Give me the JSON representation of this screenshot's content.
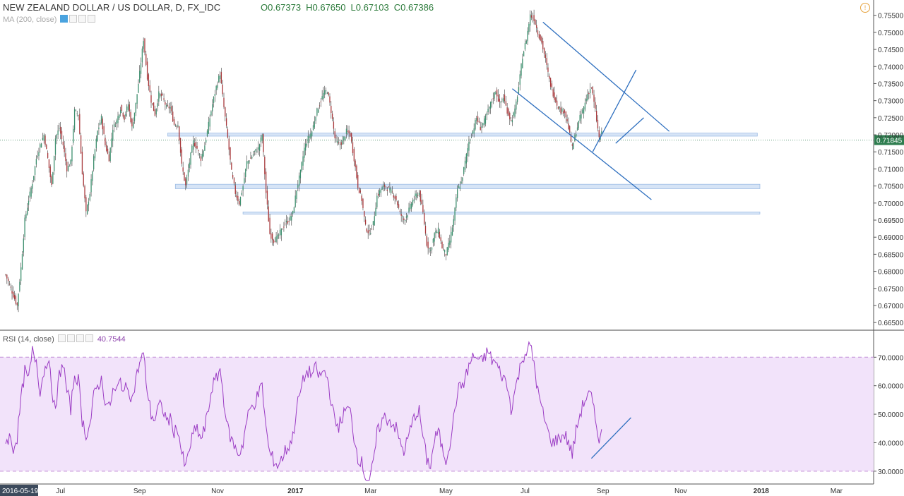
{
  "header": {
    "title": "NEW ZEALAND DOLLAR / US DOLLAR, D, FX_IDC",
    "open": "O0.67373",
    "high": "H0.67650",
    "low": "L0.67103",
    "close": "C0.67386",
    "ma_label": "MA (200, close)",
    "rsi_label": "RSI (14, close)",
    "rsi_value": "40.7544"
  },
  "colors": {
    "up": "#3d8f6e",
    "down": "#a8383b",
    "trendline": "#2e6fbf",
    "zone_fill": "#cfe0f5",
    "rsi_line": "#9b3cc4",
    "rsi_band": "#f2e3fa",
    "price_tag": "#2e7d4f"
  },
  "chart_data": [
    {
      "type": "candlestick",
      "current_price": "0.71845",
      "ylim": [
        0.664,
        0.757
      ],
      "y_ticks": [
        "0.75500",
        "0.75000",
        "0.74500",
        "0.74000",
        "0.73500",
        "0.73000",
        "0.72500",
        "0.72000",
        "0.71500",
        "0.71000",
        "0.70500",
        "0.70000",
        "0.69500",
        "0.69000",
        "0.68500",
        "0.68000",
        "0.67500",
        "0.67000",
        "0.66500"
      ],
      "x_labels": [
        "2016-05-19",
        "Jul",
        "Sep",
        "Nov",
        "2017",
        "Mar",
        "May",
        "Jul",
        "Sep",
        "Nov",
        "2018",
        "Mar"
      ],
      "x_label_days": [
        0,
        43,
        105,
        166,
        227,
        286,
        345,
        407,
        468,
        529,
        592,
        651
      ],
      "last_day": 467,
      "anchors": [
        [
          0,
          0.679
        ],
        [
          3,
          0.676
        ],
        [
          6,
          0.673
        ],
        [
          9,
          0.67
        ],
        [
          12,
          0.681
        ],
        [
          15,
          0.695
        ],
        [
          18,
          0.701
        ],
        [
          21,
          0.706
        ],
        [
          24,
          0.713
        ],
        [
          27,
          0.717
        ],
        [
          30,
          0.72
        ],
        [
          33,
          0.713
        ],
        [
          36,
          0.705
        ],
        [
          39,
          0.719
        ],
        [
          42,
          0.722
        ],
        [
          45,
          0.717
        ],
        [
          48,
          0.71
        ],
        [
          51,
          0.712
        ],
        [
          54,
          0.727
        ],
        [
          57,
          0.726
        ],
        [
          60,
          0.709
        ],
        [
          63,
          0.697
        ],
        [
          66,
          0.703
        ],
        [
          69,
          0.713
        ],
        [
          72,
          0.721
        ],
        [
          75,
          0.725
        ],
        [
          78,
          0.717
        ],
        [
          81,
          0.713
        ],
        [
          84,
          0.722
        ],
        [
          87,
          0.724
        ],
        [
          90,
          0.728
        ],
        [
          93,
          0.725
        ],
        [
          96,
          0.729
        ],
        [
          99,
          0.722
        ],
        [
          102,
          0.729
        ],
        [
          105,
          0.738
        ],
        [
          108,
          0.748
        ],
        [
          111,
          0.737
        ],
        [
          114,
          0.73
        ],
        [
          117,
          0.726
        ],
        [
          120,
          0.732
        ],
        [
          123,
          0.731
        ],
        [
          126,
          0.728
        ],
        [
          129,
          0.728
        ],
        [
          132,
          0.723
        ],
        [
          135,
          0.723
        ],
        [
          138,
          0.711
        ],
        [
          141,
          0.705
        ],
        [
          144,
          0.712
        ],
        [
          147,
          0.718
        ],
        [
          150,
          0.716
        ],
        [
          153,
          0.713
        ],
        [
          156,
          0.717
        ],
        [
          159,
          0.723
        ],
        [
          162,
          0.729
        ],
        [
          165,
          0.734
        ],
        [
          168,
          0.738
        ],
        [
          171,
          0.728
        ],
        [
          174,
          0.719
        ],
        [
          177,
          0.709
        ],
        [
          180,
          0.703
        ],
        [
          183,
          0.7
        ],
        [
          186,
          0.705
        ],
        [
          189,
          0.712
        ],
        [
          192,
          0.713
        ],
        [
          195,
          0.715
        ],
        [
          198,
          0.716
        ],
        [
          201,
          0.72
        ],
        [
          204,
          0.703
        ],
        [
          207,
          0.691
        ],
        [
          210,
          0.689
        ],
        [
          213,
          0.69
        ],
        [
          216,
          0.692
        ],
        [
          219,
          0.694
        ],
        [
          222,
          0.695
        ],
        [
          225,
          0.697
        ],
        [
          228,
          0.704
        ],
        [
          231,
          0.709
        ],
        [
          234,
          0.716
        ],
        [
          237,
          0.719
        ],
        [
          240,
          0.721
        ],
        [
          243,
          0.726
        ],
        [
          246,
          0.729
        ],
        [
          249,
          0.732
        ],
        [
          252,
          0.733
        ],
        [
          255,
          0.727
        ],
        [
          258,
          0.719
        ],
        [
          261,
          0.717
        ],
        [
          264,
          0.718
        ],
        [
          267,
          0.721
        ],
        [
          270,
          0.72
        ],
        [
          273,
          0.713
        ],
        [
          276,
          0.705
        ],
        [
          279,
          0.701
        ],
        [
          282,
          0.693
        ],
        [
          285,
          0.691
        ],
        [
          288,
          0.694
        ],
        [
          291,
          0.702
        ],
        [
          294,
          0.704
        ],
        [
          297,
          0.705
        ],
        [
          300,
          0.704
        ],
        [
          303,
          0.703
        ],
        [
          306,
          0.701
        ],
        [
          309,
          0.697
        ],
        [
          312,
          0.695
        ],
        [
          315,
          0.697
        ],
        [
          318,
          0.7
        ],
        [
          321,
          0.702
        ],
        [
          324,
          0.703
        ],
        [
          327,
          0.697
        ],
        [
          330,
          0.688
        ],
        [
          333,
          0.686
        ],
        [
          336,
          0.691
        ],
        [
          339,
          0.692
        ],
        [
          342,
          0.687
        ],
        [
          345,
          0.685
        ],
        [
          348,
          0.689
        ],
        [
          351,
          0.695
        ],
        [
          354,
          0.704
        ],
        [
          357,
          0.706
        ],
        [
          360,
          0.712
        ],
        [
          363,
          0.718
        ],
        [
          366,
          0.721
        ],
        [
          369,
          0.725
        ],
        [
          372,
          0.722
        ],
        [
          375,
          0.724
        ],
        [
          378,
          0.727
        ],
        [
          381,
          0.73
        ],
        [
          384,
          0.733
        ],
        [
          387,
          0.729
        ],
        [
          390,
          0.731
        ],
        [
          393,
          0.727
        ],
        [
          396,
          0.724
        ],
        [
          399,
          0.727
        ],
        [
          402,
          0.734
        ],
        [
          405,
          0.743
        ],
        [
          408,
          0.748
        ],
        [
          411,
          0.755
        ],
        [
          414,
          0.754
        ],
        [
          417,
          0.75
        ],
        [
          420,
          0.747
        ],
        [
          423,
          0.742
        ],
        [
          426,
          0.736
        ],
        [
          429,
          0.732
        ],
        [
          432,
          0.729
        ],
        [
          435,
          0.727
        ],
        [
          438,
          0.727
        ],
        [
          441,
          0.722
        ],
        [
          444,
          0.716
        ],
        [
          447,
          0.721
        ],
        [
          450,
          0.725
        ],
        [
          453,
          0.728
        ],
        [
          456,
          0.732
        ],
        [
          459,
          0.734
        ],
        [
          462,
          0.727
        ],
        [
          465,
          0.719
        ],
        [
          468,
          0.721
        ],
        [
          471,
          0.718
        ],
        [
          474,
          0.714
        ],
        [
          477,
          0.707
        ],
        [
          480,
          0.706
        ],
        [
          483,
          0.71
        ],
        [
          486,
          0.718
        ]
      ],
      "channel_lines": [
        {
          "d1": 421,
          "p1": 0.753,
          "d2": 520,
          "p2": 0.721
        },
        {
          "d1": 397,
          "p1": 0.7335,
          "d2": 506,
          "p2": 0.701
        },
        {
          "d1": 460,
          "p1": 0.715,
          "d2": 494,
          "p2": 0.739
        },
        {
          "d1": 478,
          "p1": 0.7175,
          "d2": 500,
          "p2": 0.725
        }
      ],
      "zones": [
        {
          "d1": 127,
          "d2": 589,
          "lo": 0.7196,
          "hi": 0.7205
        },
        {
          "d1": 133,
          "d2": 591,
          "lo": 0.7042,
          "hi": 0.7055
        },
        {
          "d1": 186,
          "d2": 591,
          "lo": 0.6968,
          "hi": 0.6974
        }
      ]
    },
    {
      "type": "line",
      "ylim": [
        25.5,
        78
      ],
      "y_ticks": [
        "70.0000",
        "60.0000",
        "50.0000",
        "40.0000",
        "30.0000"
      ],
      "band": [
        30,
        70
      ],
      "rsi": [
        [
          0,
          40
        ],
        [
          3,
          42
        ],
        [
          6,
          38
        ],
        [
          9,
          42
        ],
        [
          12,
          55
        ],
        [
          15,
          65
        ],
        [
          18,
          62
        ],
        [
          21,
          72
        ],
        [
          24,
          69
        ],
        [
          27,
          58
        ],
        [
          30,
          65
        ],
        [
          33,
          70
        ],
        [
          36,
          60
        ],
        [
          39,
          50
        ],
        [
          42,
          64
        ],
        [
          45,
          68
        ],
        [
          48,
          58
        ],
        [
          51,
          52
        ],
        [
          54,
          64
        ],
        [
          57,
          62
        ],
        [
          60,
          48
        ],
        [
          63,
          43
        ],
        [
          66,
          46
        ],
        [
          69,
          56
        ],
        [
          72,
          60
        ],
        [
          75,
          62
        ],
        [
          78,
          55
        ],
        [
          81,
          52
        ],
        [
          84,
          58
        ],
        [
          87,
          58
        ],
        [
          90,
          62
        ],
        [
          93,
          58
        ],
        [
          96,
          60
        ],
        [
          99,
          55
        ],
        [
          102,
          62
        ],
        [
          105,
          68
        ],
        [
          108,
          71
        ],
        [
          111,
          58
        ],
        [
          114,
          50
        ],
        [
          117,
          48
        ],
        [
          120,
          53
        ],
        [
          123,
          52
        ],
        [
          126,
          48
        ],
        [
          129,
          48
        ],
        [
          132,
          44
        ],
        [
          135,
          45
        ],
        [
          138,
          36
        ],
        [
          141,
          31
        ],
        [
          144,
          38
        ],
        [
          147,
          43
        ],
        [
          150,
          45
        ],
        [
          153,
          41
        ],
        [
          156,
          45
        ],
        [
          159,
          52
        ],
        [
          162,
          60
        ],
        [
          165,
          62
        ],
        [
          168,
          66
        ],
        [
          171,
          55
        ],
        [
          174,
          45
        ],
        [
          177,
          41
        ],
        [
          180,
          38
        ],
        [
          183,
          36
        ],
        [
          186,
          40
        ],
        [
          189,
          48
        ],
        [
          192,
          52
        ],
        [
          195,
          54
        ],
        [
          198,
          57
        ],
        [
          201,
          60
        ],
        [
          204,
          45
        ],
        [
          207,
          36
        ],
        [
          210,
          34
        ],
        [
          213,
          32
        ],
        [
          216,
          34
        ],
        [
          219,
          37
        ],
        [
          222,
          39
        ],
        [
          225,
          42
        ],
        [
          228,
          52
        ],
        [
          231,
          58
        ],
        [
          234,
          63
        ],
        [
          237,
          65
        ],
        [
          240,
          64
        ],
        [
          243,
          66
        ],
        [
          246,
          63
        ],
        [
          249,
          65
        ],
        [
          252,
          63
        ],
        [
          255,
          55
        ],
        [
          258,
          47
        ],
        [
          261,
          46
        ],
        [
          264,
          49
        ],
        [
          267,
          52
        ],
        [
          270,
          51
        ],
        [
          273,
          42
        ],
        [
          276,
          35
        ],
        [
          279,
          33
        ],
        [
          282,
          28
        ],
        [
          285,
          27
        ],
        [
          288,
          32
        ],
        [
          291,
          43
        ],
        [
          294,
          47
        ],
        [
          297,
          49
        ],
        [
          300,
          48
        ],
        [
          303,
          47
        ],
        [
          306,
          45
        ],
        [
          309,
          40
        ],
        [
          312,
          37
        ],
        [
          315,
          41
        ],
        [
          318,
          46
        ],
        [
          321,
          50
        ],
        [
          324,
          51
        ],
        [
          327,
          42
        ],
        [
          330,
          34
        ],
        [
          333,
          32
        ],
        [
          336,
          41
        ],
        [
          339,
          44
        ],
        [
          342,
          38
        ],
        [
          345,
          34
        ],
        [
          348,
          40
        ],
        [
          351,
          48
        ],
        [
          354,
          58
        ],
        [
          357,
          60
        ],
        [
          360,
          62
        ],
        [
          363,
          67
        ],
        [
          366,
          70
        ],
        [
          369,
          70
        ],
        [
          372,
          68
        ],
        [
          375,
          70
        ],
        [
          378,
          72
        ],
        [
          381,
          69
        ],
        [
          384,
          68
        ],
        [
          387,
          65
        ],
        [
          390,
          63
        ],
        [
          393,
          60
        ],
        [
          396,
          52
        ],
        [
          399,
          58
        ],
        [
          402,
          64
        ],
        [
          405,
          70
        ],
        [
          408,
          72
        ],
        [
          411,
          74
        ],
        [
          414,
          68
        ],
        [
          417,
          58
        ],
        [
          420,
          52
        ],
        [
          423,
          47
        ],
        [
          426,
          42
        ],
        [
          429,
          40
        ],
        [
          432,
          41
        ],
        [
          435,
          42
        ],
        [
          438,
          43
        ],
        [
          441,
          40
        ],
        [
          444,
          36
        ],
        [
          447,
          44
        ],
        [
          450,
          50
        ],
        [
          453,
          54
        ],
        [
          456,
          57
        ],
        [
          459,
          56
        ],
        [
          462,
          48
        ],
        [
          465,
          42
        ],
        [
          468,
          44
        ],
        [
          471,
          41
        ],
        [
          474,
          37
        ],
        [
          477,
          33
        ],
        [
          480,
          34
        ],
        [
          483,
          40
        ],
        [
          486,
          49
        ]
      ],
      "trendline": {
        "d1": 459,
        "v1": 34.5,
        "d2": 490,
        "v2": 48.8
      }
    }
  ]
}
